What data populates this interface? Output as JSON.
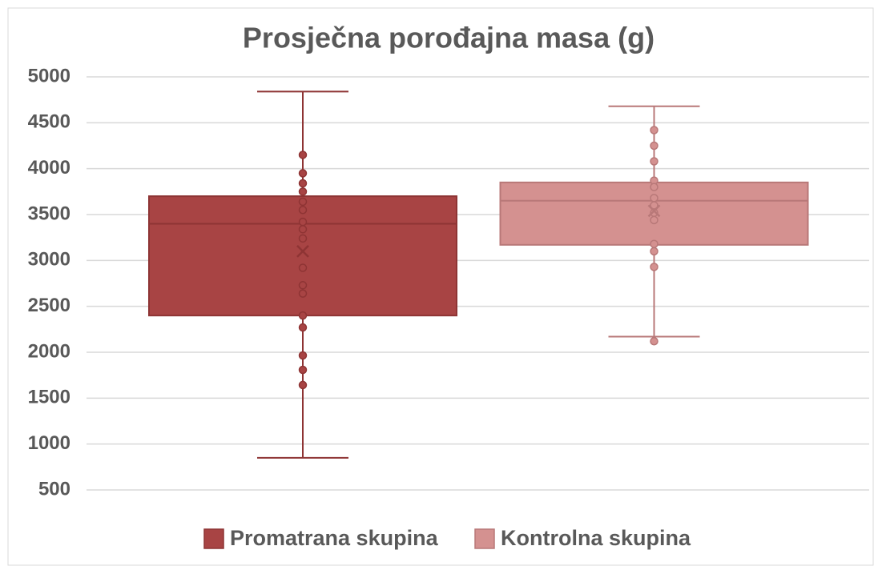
{
  "chart_data": {
    "type": "box",
    "title": "Prosječna porođajna masa (g)",
    "ylim": [
      500,
      5000
    ],
    "yticks": [
      500,
      1000,
      1500,
      2000,
      2500,
      3000,
      3500,
      4000,
      4500,
      5000
    ],
    "grid": true,
    "legend": "bottom",
    "series": [
      {
        "name": "Promatrana skupina",
        "color": "#a84444",
        "min": 850,
        "q1": 2400,
        "median": 3400,
        "q3": 3700,
        "max": 4840,
        "mean": 3100,
        "points": [
          4150,
          3950,
          3840,
          3750,
          3640,
          3550,
          3420,
          3340,
          3240,
          2920,
          2730,
          2640,
          2400,
          2270,
          1965,
          1808,
          1643
        ]
      },
      {
        "name": "Kontrolna skupina",
        "color": "#d49190",
        "min": 2170,
        "q1": 3170,
        "median": 3650,
        "q3": 3850,
        "max": 4680,
        "mean": 3540,
        "points": [
          4420,
          4250,
          4080,
          3870,
          3800,
          3680,
          3600,
          3520,
          3440,
          3180,
          3100,
          2930,
          2120
        ]
      }
    ]
  }
}
